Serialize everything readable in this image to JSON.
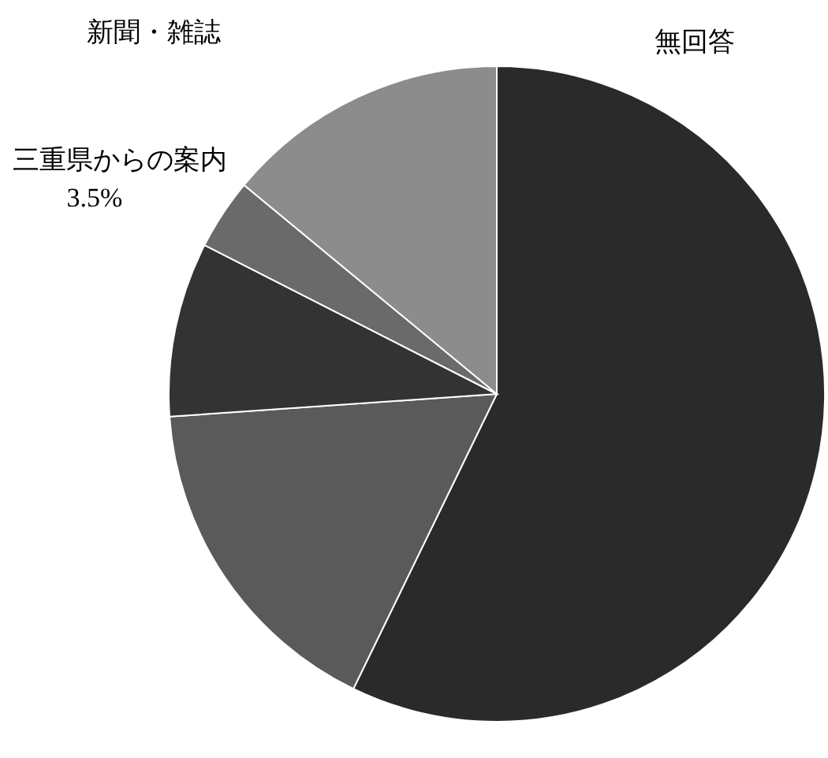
{
  "chart_data": {
    "type": "pie",
    "categories": [
      null,
      null,
      null,
      "三重県からの案内",
      null
    ],
    "values": [
      57.2,
      16.7,
      8.6,
      3.5,
      14.0
    ],
    "colors": [
      "#2a2a2a",
      "#5a5a5a",
      "#333333",
      "#6a6a6a",
      "#8c8c8c"
    ],
    "value_labels": [
      null,
      null,
      null,
      "3.5%",
      null
    ],
    "annotations": [
      "新聞・雑誌",
      "無回答"
    ]
  }
}
